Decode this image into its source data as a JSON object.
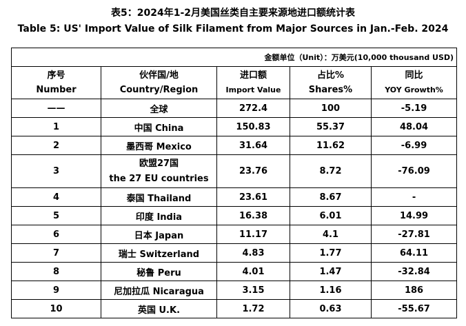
{
  "title_cn": "表5：2024年1-2月美国丝类自主要来源地进口额统计表",
  "title_en": "Table 5: US' Import Value of Silk Filament from Major Sources in Jan.-Feb. 2024",
  "unit": "金额单位（Unit）：万美元(10,000 thousand USD)",
  "headers": [
    {
      "cn": "序号",
      "en": "Number"
    },
    {
      "cn": "伙伴国/地",
      "en": "Country/Region"
    },
    {
      "cn": "进口额",
      "en": "Import Value"
    },
    {
      "cn": "占比%",
      "en": "Shares%"
    },
    {
      "cn": "同比",
      "en": "YOY Growth%"
    }
  ],
  "rows": [
    [
      "——",
      "全球",
      "272.4",
      "100",
      "-5.19"
    ],
    [
      "1",
      "中国 China",
      "150.83",
      "55.37",
      "48.04"
    ],
    [
      "2",
      "墨西哥 Mexico",
      "31.64",
      "11.62",
      "-6.99"
    ],
    [
      "3",
      "欧盟27国\nthe 27 EU countries",
      "23.76",
      "8.72",
      "-76.09"
    ],
    [
      "4",
      "泰国 Thailand",
      "23.61",
      "8.67",
      "-"
    ],
    [
      "5",
      "印度 India",
      "16.38",
      "6.01",
      "14.99"
    ],
    [
      "6",
      "日本 Japan",
      "11.17",
      "4.1",
      "-27.81"
    ],
    [
      "7",
      "瑞士 Switzerland",
      "4.83",
      "1.77",
      "64.11"
    ],
    [
      "8",
      "秘鲁 Peru",
      "4.01",
      "1.47",
      "-32.84"
    ],
    [
      "9",
      "尼加拉瓜 Nicaragua",
      "3.15",
      "1.16",
      "186"
    ],
    [
      "10",
      "英国 U.K.",
      "1.72",
      "0.63",
      "-55.67"
    ]
  ]
}
